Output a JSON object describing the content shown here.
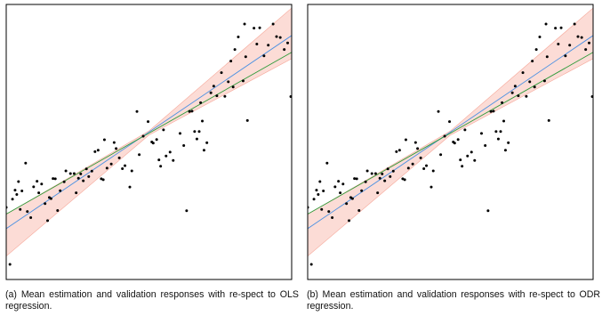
{
  "figure": {
    "colors": {
      "points": "#000000",
      "mean_line": "#4a90e2",
      "validation_line": "#2e9b3a",
      "interval_band": "#fbd0c8",
      "interval_band_edge": "#f6a89a",
      "frame": "#000000"
    },
    "panels": [
      {
        "id": "a",
        "caption": "(a) Mean estimation and validation responses with re-spect to OLS regression."
      },
      {
        "id": "b",
        "caption": "(b) Mean estimation and validation responses with re-spect to ODR regression."
      }
    ]
  },
  "chart_data": [
    {
      "type": "scatter",
      "title": "",
      "xlabel": "",
      "ylabel": "",
      "axes_ticks": "none",
      "grid": false,
      "xlim": [
        0,
        1
      ],
      "ylim": [
        0,
        1
      ],
      "points": [
        [
          0.0,
          0.262
        ],
        [
          0.013,
          0.055
        ],
        [
          0.022,
          0.292
        ],
        [
          0.031,
          0.325
        ],
        [
          0.037,
          0.309
        ],
        [
          0.043,
          0.356
        ],
        [
          0.049,
          0.255
        ],
        [
          0.055,
          0.322
        ],
        [
          0.068,
          0.423
        ],
        [
          0.074,
          0.247
        ],
        [
          0.086,
          0.225
        ],
        [
          0.096,
          0.337
        ],
        [
          0.108,
          0.357
        ],
        [
          0.114,
          0.315
        ],
        [
          0.124,
          0.347
        ],
        [
          0.136,
          0.276
        ],
        [
          0.145,
          0.214
        ],
        [
          0.151,
          0.298
        ],
        [
          0.157,
          0.294
        ],
        [
          0.164,
          0.367
        ],
        [
          0.172,
          0.366
        ],
        [
          0.18,
          0.251
        ],
        [
          0.189,
          0.323
        ],
        [
          0.203,
          0.355
        ],
        [
          0.209,
          0.395
        ],
        [
          0.225,
          0.385
        ],
        [
          0.238,
          0.385
        ],
        [
          0.245,
          0.315
        ],
        [
          0.253,
          0.368
        ],
        [
          0.261,
          0.384
        ],
        [
          0.27,
          0.359
        ],
        [
          0.281,
          0.402
        ],
        [
          0.289,
          0.374
        ],
        [
          0.3,
          0.394
        ],
        [
          0.311,
          0.465
        ],
        [
          0.322,
          0.47
        ],
        [
          0.333,
          0.366
        ],
        [
          0.34,
          0.363
        ],
        [
          0.344,
          0.508
        ],
        [
          0.353,
          0.405
        ],
        [
          0.368,
          0.42
        ],
        [
          0.378,
          0.498
        ],
        [
          0.385,
          0.476
        ],
        [
          0.396,
          0.442
        ],
        [
          0.407,
          0.403
        ],
        [
          0.416,
          0.414
        ],
        [
          0.433,
          0.336
        ],
        [
          0.44,
          0.395
        ],
        [
          0.458,
          0.611
        ],
        [
          0.466,
          0.454
        ],
        [
          0.48,
          0.521
        ],
        [
          0.497,
          0.574
        ],
        [
          0.51,
          0.5
        ],
        [
          0.515,
          0.496
        ],
        [
          0.527,
          0.509
        ],
        [
          0.535,
          0.435
        ],
        [
          0.541,
          0.412
        ],
        [
          0.551,
          0.544
        ],
        [
          0.56,
          0.449
        ],
        [
          0.574,
          0.463
        ],
        [
          0.585,
          0.433
        ],
        [
          0.609,
          0.531
        ],
        [
          0.622,
          0.487
        ],
        [
          0.632,
          0.25
        ],
        [
          0.642,
          0.611
        ],
        [
          0.651,
          0.612
        ],
        [
          0.66,
          0.538
        ],
        [
          0.668,
          0.511
        ],
        [
          0.676,
          0.538
        ],
        [
          0.681,
          0.643
        ],
        [
          0.687,
          0.576
        ],
        [
          0.693,
          0.47
        ],
        [
          0.703,
          0.497
        ],
        [
          0.717,
          0.679
        ],
        [
          0.727,
          0.703
        ],
        [
          0.738,
          0.668
        ],
        [
          0.754,
          0.752
        ],
        [
          0.766,
          0.666
        ],
        [
          0.778,
          0.719
        ],
        [
          0.787,
          0.794
        ],
        [
          0.795,
          0.7
        ],
        [
          0.801,
          0.836
        ],
        [
          0.813,
          0.882
        ],
        [
          0.83,
          0.722
        ],
        [
          0.835,
          0.929
        ],
        [
          0.839,
          0.81
        ],
        [
          0.845,
          0.578
        ],
        [
          0.868,
          0.914
        ],
        [
          0.878,
          0.856
        ],
        [
          0.888,
          0.915
        ],
        [
          0.903,
          0.813
        ],
        [
          0.918,
          0.852
        ],
        [
          0.935,
          0.929
        ],
        [
          0.947,
          0.883
        ],
        [
          0.96,
          0.88
        ],
        [
          0.974,
          0.836
        ],
        [
          0.986,
          0.86
        ],
        [
          0.997,
          0.665
        ]
      ],
      "series": [
        {
          "role": "mean estimation",
          "x": [
            0,
            1
          ],
          "y": [
            0.185,
            0.887
          ]
        },
        {
          "role": "validation",
          "x": [
            0,
            1
          ],
          "y": [
            0.238,
            0.826
          ]
        },
        {
          "role": "interval",
          "x": [
            0,
            0.5,
            1
          ],
          "lower": [
            0.085,
            0.525,
            0.803
          ],
          "upper": [
            0.237,
            0.54,
            0.987
          ]
        }
      ]
    },
    {
      "type": "scatter",
      "title": "",
      "xlabel": "",
      "ylabel": "",
      "axes_ticks": "none",
      "grid": false,
      "xlim": [
        0,
        1
      ],
      "ylim": [
        0,
        1
      ],
      "points": [
        [
          0.0,
          0.262
        ],
        [
          0.013,
          0.055
        ],
        [
          0.022,
          0.292
        ],
        [
          0.031,
          0.325
        ],
        [
          0.037,
          0.309
        ],
        [
          0.043,
          0.356
        ],
        [
          0.049,
          0.255
        ],
        [
          0.055,
          0.322
        ],
        [
          0.068,
          0.423
        ],
        [
          0.074,
          0.247
        ],
        [
          0.086,
          0.225
        ],
        [
          0.096,
          0.337
        ],
        [
          0.108,
          0.357
        ],
        [
          0.114,
          0.315
        ],
        [
          0.124,
          0.347
        ],
        [
          0.136,
          0.276
        ],
        [
          0.145,
          0.214
        ],
        [
          0.151,
          0.298
        ],
        [
          0.157,
          0.294
        ],
        [
          0.164,
          0.367
        ],
        [
          0.172,
          0.366
        ],
        [
          0.18,
          0.251
        ],
        [
          0.189,
          0.323
        ],
        [
          0.203,
          0.355
        ],
        [
          0.209,
          0.395
        ],
        [
          0.225,
          0.385
        ],
        [
          0.238,
          0.385
        ],
        [
          0.245,
          0.315
        ],
        [
          0.253,
          0.368
        ],
        [
          0.261,
          0.384
        ],
        [
          0.27,
          0.359
        ],
        [
          0.281,
          0.402
        ],
        [
          0.289,
          0.374
        ],
        [
          0.3,
          0.394
        ],
        [
          0.311,
          0.465
        ],
        [
          0.322,
          0.47
        ],
        [
          0.333,
          0.366
        ],
        [
          0.34,
          0.363
        ],
        [
          0.344,
          0.508
        ],
        [
          0.353,
          0.405
        ],
        [
          0.368,
          0.42
        ],
        [
          0.378,
          0.498
        ],
        [
          0.385,
          0.476
        ],
        [
          0.396,
          0.442
        ],
        [
          0.407,
          0.403
        ],
        [
          0.416,
          0.414
        ],
        [
          0.433,
          0.336
        ],
        [
          0.44,
          0.395
        ],
        [
          0.458,
          0.611
        ],
        [
          0.466,
          0.454
        ],
        [
          0.48,
          0.521
        ],
        [
          0.497,
          0.574
        ],
        [
          0.51,
          0.5
        ],
        [
          0.515,
          0.496
        ],
        [
          0.527,
          0.509
        ],
        [
          0.535,
          0.435
        ],
        [
          0.541,
          0.412
        ],
        [
          0.551,
          0.544
        ],
        [
          0.56,
          0.449
        ],
        [
          0.574,
          0.463
        ],
        [
          0.585,
          0.433
        ],
        [
          0.609,
          0.531
        ],
        [
          0.622,
          0.487
        ],
        [
          0.632,
          0.25
        ],
        [
          0.642,
          0.611
        ],
        [
          0.651,
          0.612
        ],
        [
          0.66,
          0.538
        ],
        [
          0.668,
          0.511
        ],
        [
          0.676,
          0.538
        ],
        [
          0.681,
          0.643
        ],
        [
          0.687,
          0.576
        ],
        [
          0.693,
          0.47
        ],
        [
          0.703,
          0.497
        ],
        [
          0.717,
          0.679
        ],
        [
          0.727,
          0.703
        ],
        [
          0.738,
          0.668
        ],
        [
          0.754,
          0.752
        ],
        [
          0.766,
          0.666
        ],
        [
          0.778,
          0.719
        ],
        [
          0.787,
          0.794
        ],
        [
          0.795,
          0.7
        ],
        [
          0.801,
          0.836
        ],
        [
          0.813,
          0.882
        ],
        [
          0.83,
          0.722
        ],
        [
          0.835,
          0.929
        ],
        [
          0.839,
          0.81
        ],
        [
          0.845,
          0.578
        ],
        [
          0.868,
          0.914
        ],
        [
          0.878,
          0.856
        ],
        [
          0.888,
          0.915
        ],
        [
          0.903,
          0.813
        ],
        [
          0.918,
          0.852
        ],
        [
          0.935,
          0.929
        ],
        [
          0.947,
          0.883
        ],
        [
          0.96,
          0.88
        ],
        [
          0.974,
          0.836
        ],
        [
          0.986,
          0.86
        ],
        [
          0.997,
          0.665
        ]
      ],
      "series": [
        {
          "role": "mean estimation",
          "x": [
            0,
            1
          ],
          "y": [
            0.185,
            0.887
          ]
        },
        {
          "role": "validation",
          "x": [
            0,
            1
          ],
          "y": [
            0.238,
            0.826
          ]
        },
        {
          "role": "interval",
          "x": [
            0,
            0.5,
            1
          ],
          "lower": [
            0.085,
            0.525,
            0.803
          ],
          "upper": [
            0.237,
            0.54,
            0.987
          ]
        }
      ]
    }
  ]
}
